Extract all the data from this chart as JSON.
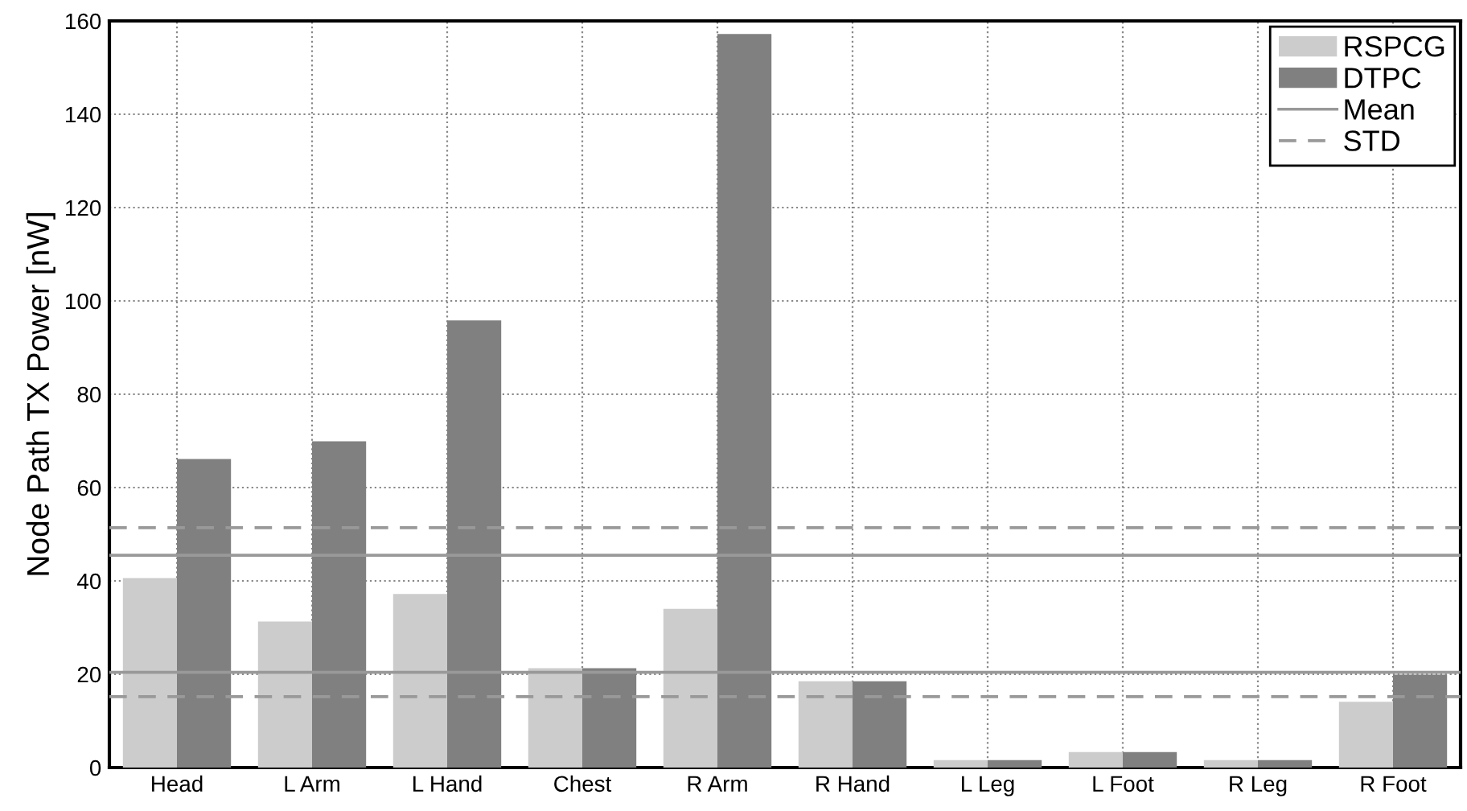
{
  "chart_data": {
    "type": "bar",
    "ylabel": "Node Path TX Power [nW]",
    "categories": [
      "Head",
      "L Arm",
      "L Hand",
      "Chest",
      "R Arm",
      "R Hand",
      "L Leg",
      "L Foot",
      "R Leg",
      "R Foot"
    ],
    "series": [
      {
        "name": "RSPCG",
        "color": "#cccccc",
        "values": [
          40.6,
          31.3,
          37.2,
          21.3,
          34.0,
          18.5,
          1.6,
          3.3,
          1.6,
          14.1
        ]
      },
      {
        "name": "DTPC",
        "color": "#808080",
        "values": [
          66.1,
          69.9,
          95.8,
          21.3,
          157.2,
          18.5,
          1.6,
          3.3,
          1.6,
          19.9
        ]
      }
    ],
    "ylim": [
      0,
      160
    ],
    "yticks": [
      0,
      20,
      40,
      60,
      80,
      100,
      120,
      140,
      160
    ],
    "ref_lines": [
      {
        "axis": "y",
        "value": 45.5,
        "label": "Mean",
        "color": "#999999",
        "line_style": "solid"
      },
      {
        "axis": "y",
        "value": 20.4,
        "color": "#999999",
        "line_style": "solid"
      },
      {
        "axis": "y",
        "value": 51.4,
        "label": "STD",
        "color": "#999999",
        "line_style": "dashed"
      },
      {
        "axis": "y",
        "value": 15.2,
        "color": "#999999",
        "line_style": "dashed"
      }
    ],
    "grid": true,
    "legend": "top right"
  }
}
